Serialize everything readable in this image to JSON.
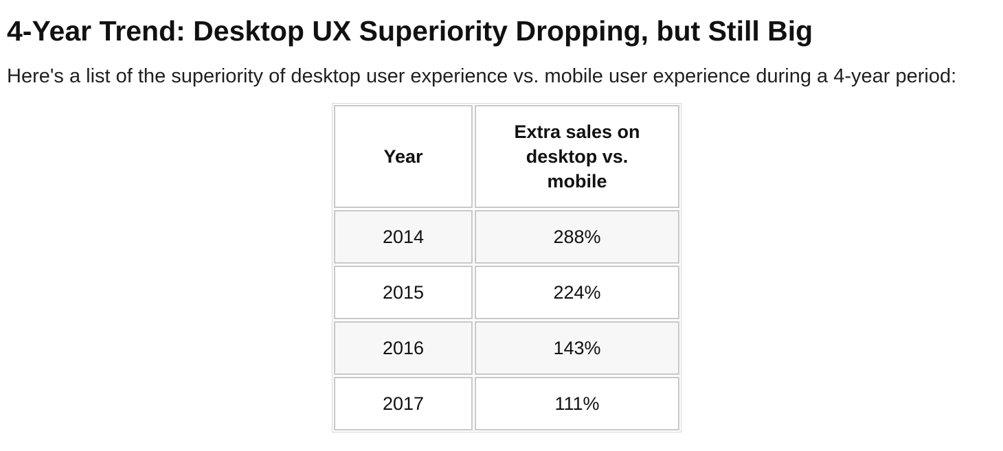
{
  "article": {
    "heading": "4-Year Trend: Desktop UX Superiority Dropping, but Still Big",
    "intro": "Here's a list of the superiority of desktop user experience vs. mobile user experience during a 4-year period:"
  },
  "table": {
    "headers": [
      "Year",
      "Extra sales on desktop vs. mobile"
    ],
    "rows": [
      [
        "2014",
        "288%"
      ],
      [
        "2015",
        "224%"
      ],
      [
        "2016",
        "143%"
      ],
      [
        "2017",
        "111%"
      ]
    ]
  },
  "colors": {
    "shaded_row": "#f7f7f7",
    "cell_border": "#c8c8c8",
    "text": "#111111"
  }
}
